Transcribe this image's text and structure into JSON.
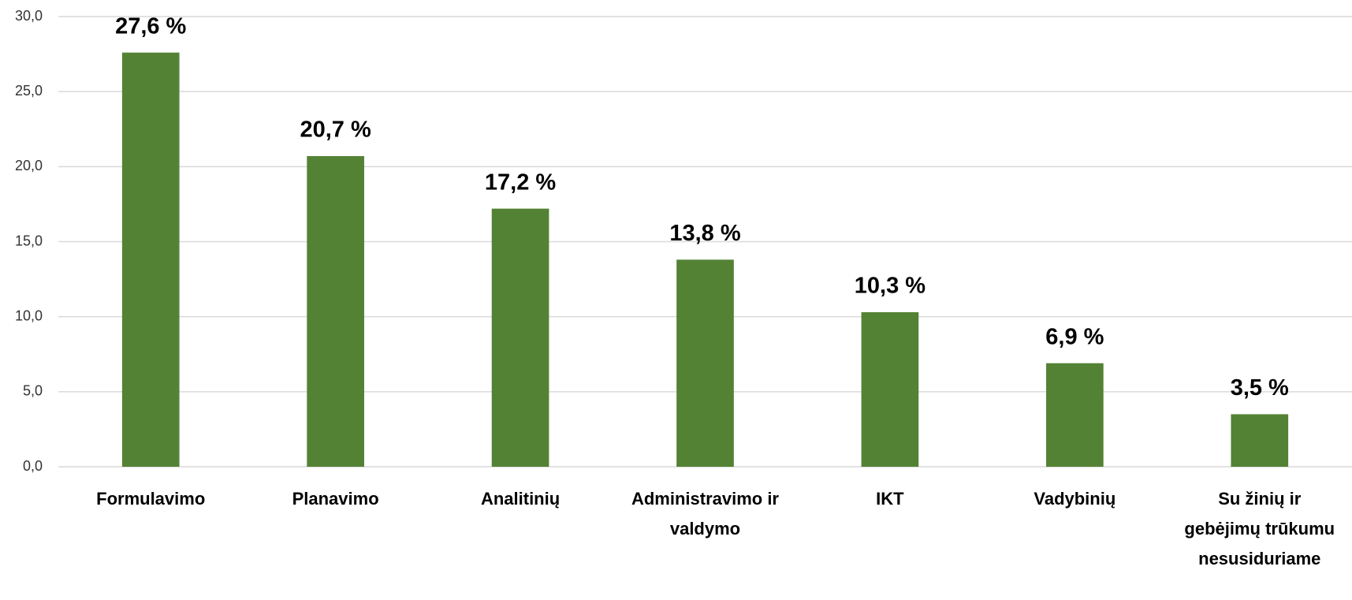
{
  "chart_data": {
    "type": "bar",
    "categories": [
      "Formulavimo",
      "Planavimo",
      "Analitinių",
      "Administravimo ir valdymo",
      "IKT",
      "Vadybinių",
      "Su žinių ir gebėjimų trūkumu nesusiduriame"
    ],
    "values": [
      27.6,
      20.7,
      17.2,
      13.8,
      10.3,
      6.9,
      3.5
    ],
    "value_labels": [
      "27,6 %",
      "20,7 %",
      "17,2 %",
      "13,8 %",
      "10,3 %",
      "6,9 %",
      "3,5 %"
    ],
    "color": "#548235",
    "ylim": [
      0,
      30
    ],
    "yticks": [
      {
        "value": 0,
        "label": "0,0"
      },
      {
        "value": 5,
        "label": "5,0"
      },
      {
        "value": 10,
        "label": "10,0"
      },
      {
        "value": 15,
        "label": "15,0"
      },
      {
        "value": 20,
        "label": "20,0"
      },
      {
        "value": 25,
        "label": "25,0"
      },
      {
        "value": 30,
        "label": "30,0"
      }
    ],
    "grid": true
  }
}
